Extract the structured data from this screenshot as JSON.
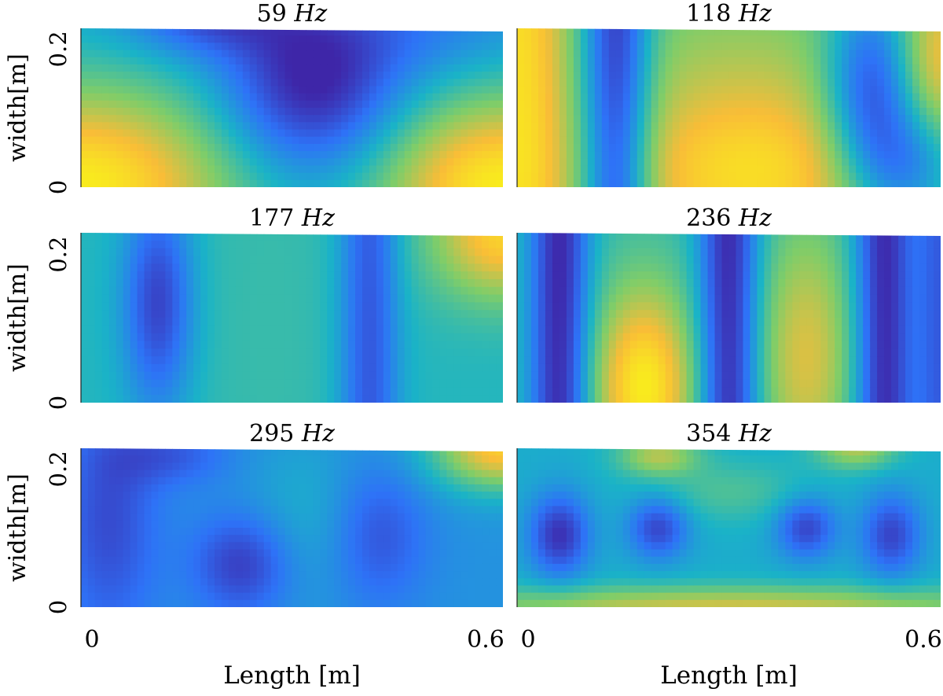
{
  "chart_data": {
    "type": "heatmap",
    "grid": "off",
    "colormap": [
      "#3e26a8",
      "#2e72f7",
      "#1ab3c7",
      "#7fcd69",
      "#f9bd37",
      "#f9fb15"
    ],
    "xlabel": "Length [m]",
    "ylabel": "width[m]",
    "xlim": [
      0,
      0.6
    ],
    "ylim": [
      0,
      0.22
    ],
    "xticks": [
      "0",
      "0.6"
    ],
    "yticks": [
      "0",
      "0.2"
    ],
    "panels": [
      {
        "title_num": "59",
        "title_unit": "Hz",
        "base": 0.35,
        "blobs": [
          {
            "x": 0.33,
            "y": 0.14,
            "sx": 0.09,
            "sy": 0.09,
            "a": -0.4
          },
          {
            "x": 0.18,
            "y": 0.24,
            "sx": 0.08,
            "sy": 0.04,
            "a": -0.25
          },
          {
            "x": 0.0,
            "y": 0.0,
            "sx": 0.16,
            "sy": 0.1,
            "a": 0.6
          },
          {
            "x": 0.6,
            "y": 0.0,
            "sx": 0.13,
            "sy": 0.09,
            "a": 0.6
          },
          {
            "x": 0.5,
            "y": 0.22,
            "sx": 0.1,
            "sy": 0.05,
            "a": -0.1
          }
        ]
      },
      {
        "title_num": "118",
        "title_unit": "Hz",
        "base": 0.55,
        "blobs": [
          {
            "x": 0.0,
            "y": 0.11,
            "sx": 0.05,
            "sy": 0.6,
            "a": 0.35
          },
          {
            "x": 0.14,
            "y": 0.11,
            "sx": 0.035,
            "sy": 0.6,
            "a": -0.5
          },
          {
            "x": 0.33,
            "y": 0.02,
            "sx": 0.14,
            "sy": 0.09,
            "a": 0.35
          },
          {
            "x": 0.31,
            "y": 0.18,
            "sx": 0.12,
            "sy": 0.06,
            "a": 0.05
          },
          {
            "x": 0.5,
            "y": 0.13,
            "sx": 0.045,
            "sy": 0.1,
            "a": -0.45
          },
          {
            "x": 0.56,
            "y": 0.03,
            "sx": 0.05,
            "sy": 0.06,
            "a": -0.3
          },
          {
            "x": 0.6,
            "y": 0.18,
            "sx": 0.04,
            "sy": 0.08,
            "a": 0.25
          }
        ]
      },
      {
        "title_num": "177",
        "title_unit": "Hz",
        "base": 0.42,
        "blobs": [
          {
            "x": 0.11,
            "y": 0.13,
            "sx": 0.035,
            "sy": 0.1,
            "a": -0.35
          },
          {
            "x": 0.41,
            "y": 0.11,
            "sx": 0.03,
            "sy": 0.6,
            "a": -0.3
          },
          {
            "x": 0.6,
            "y": 0.22,
            "sx": 0.07,
            "sy": 0.06,
            "a": 0.45
          },
          {
            "x": 0.27,
            "y": 0.1,
            "sx": 0.1,
            "sy": 0.4,
            "a": 0.04
          }
        ]
      },
      {
        "title_num": "236",
        "title_unit": "Hz",
        "base": 0.45,
        "blobs": [
          {
            "x": 0.06,
            "y": 0.11,
            "sx": 0.03,
            "sy": 0.6,
            "a": -0.45
          },
          {
            "x": 0.3,
            "y": 0.11,
            "sx": 0.03,
            "sy": 0.6,
            "a": -0.45
          },
          {
            "x": 0.52,
            "y": 0.11,
            "sx": 0.03,
            "sy": 0.6,
            "a": -0.45
          },
          {
            "x": 0.18,
            "y": 0.02,
            "sx": 0.05,
            "sy": 0.09,
            "a": 0.5
          },
          {
            "x": 0.41,
            "y": 0.06,
            "sx": 0.05,
            "sy": 0.12,
            "a": 0.3
          },
          {
            "x": 0.6,
            "y": 0.11,
            "sx": 0.025,
            "sy": 0.6,
            "a": -0.3
          }
        ]
      },
      {
        "title_num": "295",
        "title_unit": "Hz",
        "base": 0.3,
        "blobs": [
          {
            "x": 0.04,
            "y": 0.12,
            "sx": 0.05,
            "sy": 0.12,
            "a": -0.2
          },
          {
            "x": 0.23,
            "y": 0.06,
            "sx": 0.05,
            "sy": 0.05,
            "a": -0.25
          },
          {
            "x": 0.42,
            "y": 0.1,
            "sx": 0.05,
            "sy": 0.07,
            "a": -0.2
          },
          {
            "x": 0.13,
            "y": 0.21,
            "sx": 0.06,
            "sy": 0.03,
            "a": -0.15
          },
          {
            "x": 0.6,
            "y": 0.22,
            "sx": 0.07,
            "sy": 0.04,
            "a": 0.55
          },
          {
            "x": 0.33,
            "y": 0.12,
            "sx": 0.07,
            "sy": 0.08,
            "a": 0.1
          }
        ]
      },
      {
        "title_num": "354",
        "title_unit": "Hz",
        "base": 0.38,
        "blobs": [
          {
            "x": 0.06,
            "y": 0.1,
            "sx": 0.03,
            "sy": 0.04,
            "a": -0.35
          },
          {
            "x": 0.2,
            "y": 0.11,
            "sx": 0.03,
            "sy": 0.03,
            "a": -0.3
          },
          {
            "x": 0.41,
            "y": 0.11,
            "sx": 0.03,
            "sy": 0.03,
            "a": -0.3
          },
          {
            "x": 0.53,
            "y": 0.1,
            "sx": 0.03,
            "sy": 0.04,
            "a": -0.3
          },
          {
            "x": 0.3,
            "y": 0.0,
            "sx": 0.3,
            "sy": 0.02,
            "a": 0.35
          },
          {
            "x": 0.2,
            "y": 0.21,
            "sx": 0.04,
            "sy": 0.02,
            "a": 0.3
          },
          {
            "x": 0.48,
            "y": 0.22,
            "sx": 0.04,
            "sy": 0.02,
            "a": 0.3
          },
          {
            "x": 0.3,
            "y": 0.16,
            "sx": 0.08,
            "sy": 0.03,
            "a": 0.12
          }
        ]
      }
    ]
  }
}
